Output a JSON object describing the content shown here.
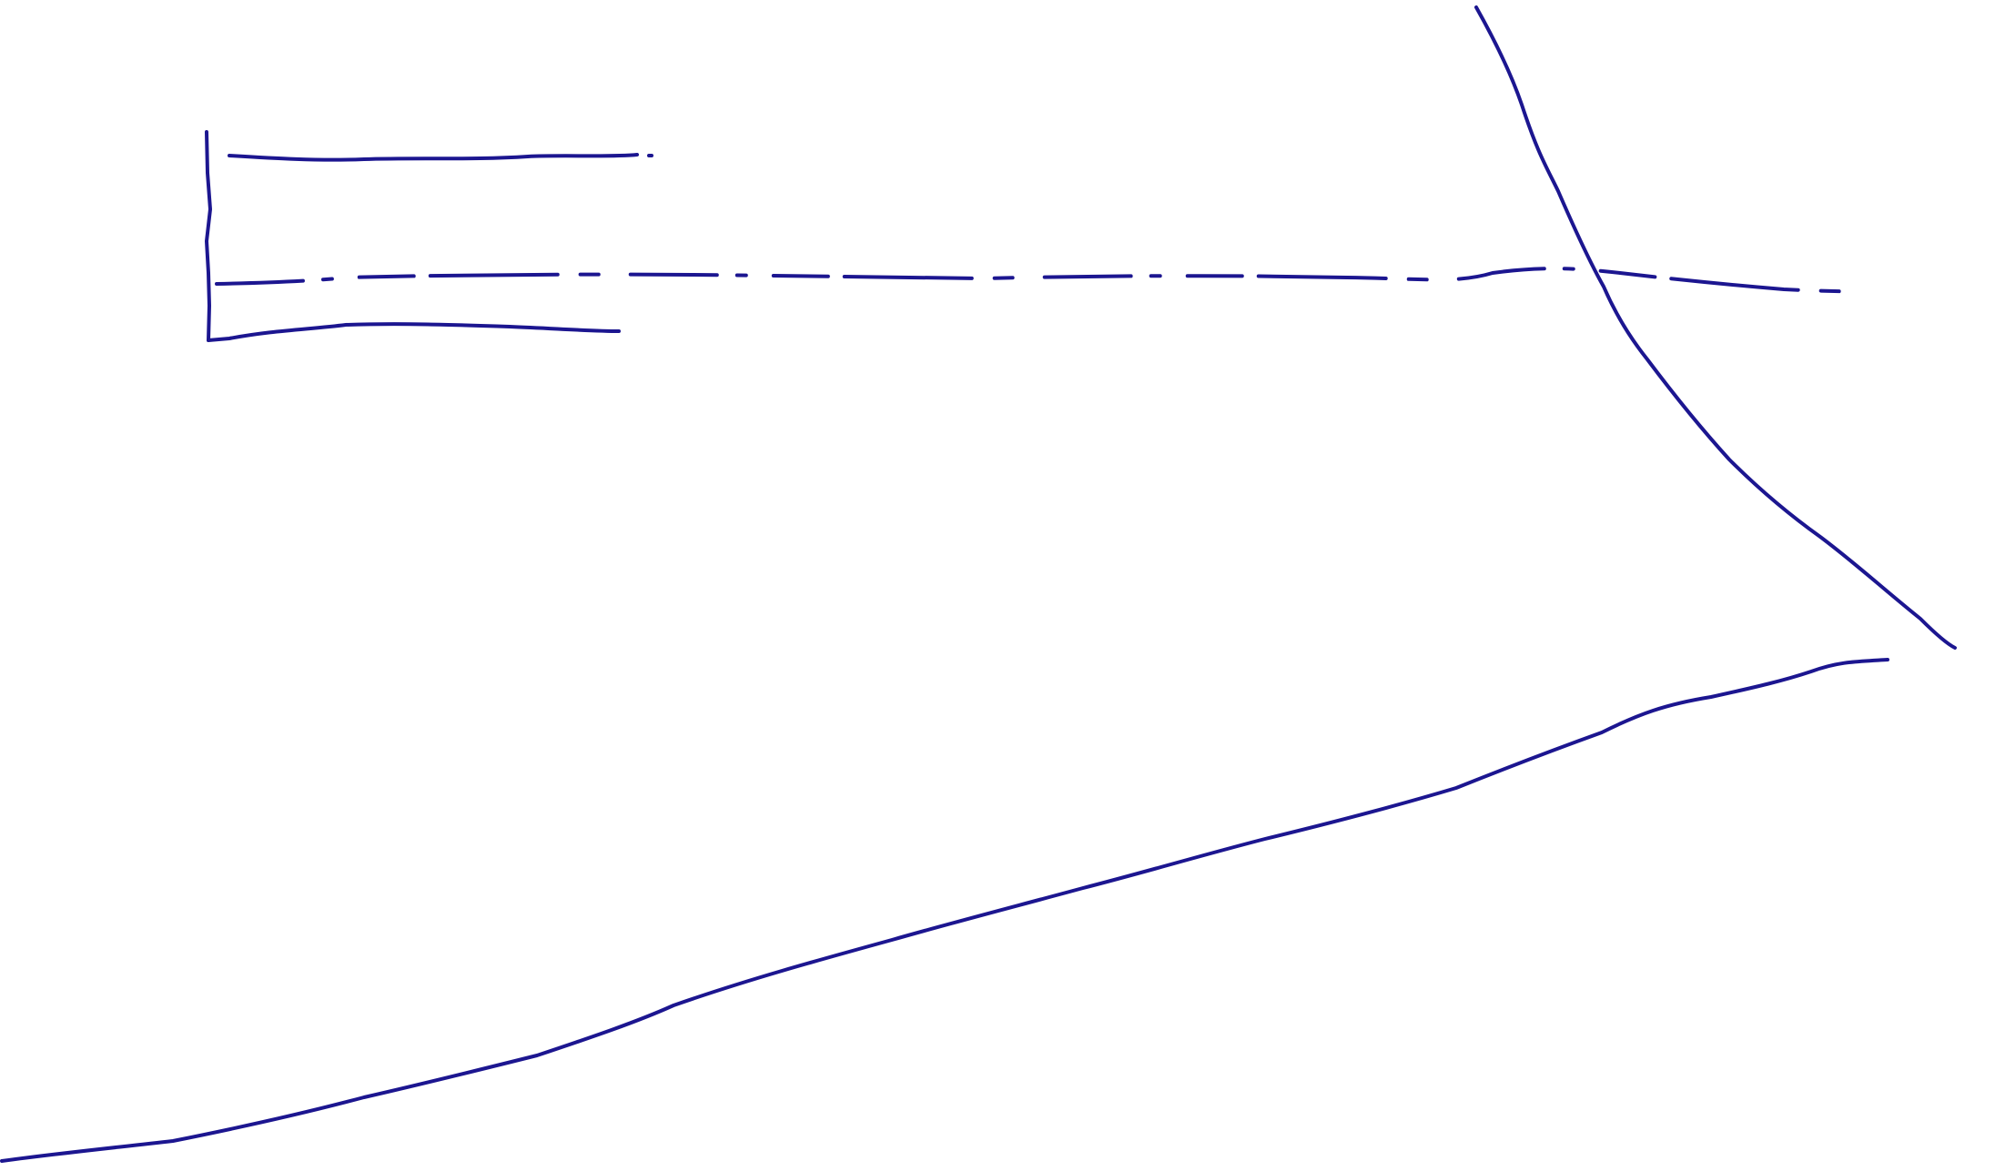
{
  "canvas": {
    "background": "#ffffff",
    "ink_color": "#1c1690"
  },
  "strokes": [
    {
      "name": "bracket-top-line",
      "style": "solid"
    },
    {
      "name": "bracket-vertical-line",
      "style": "solid"
    },
    {
      "name": "bracket-bottom-line",
      "style": "solid"
    },
    {
      "name": "horizontal-dashed-line",
      "style": "dashed"
    },
    {
      "name": "descending-curve",
      "style": "solid"
    },
    {
      "name": "ascending-line",
      "style": "solid"
    }
  ]
}
